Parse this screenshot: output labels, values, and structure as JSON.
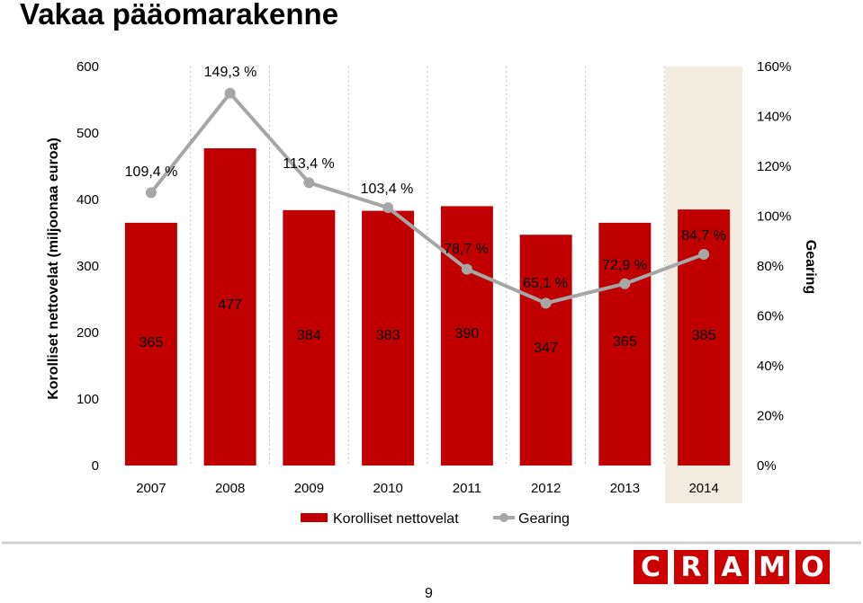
{
  "page": {
    "title": "Vakaa pääomarakenne",
    "page_number": "9",
    "logo_letters": [
      "C",
      "R",
      "A",
      "M",
      "O"
    ],
    "colors": {
      "bar": "#c00000",
      "line": "#a6a6a6",
      "highlight": "#f2ebdf",
      "logo": "#cc0000"
    }
  },
  "chart_data": {
    "type": "bar",
    "categories": [
      "2007",
      "2008",
      "2009",
      "2010",
      "2011",
      "2012",
      "2013",
      "2014"
    ],
    "series": [
      {
        "name": "Korolliset nettovelat",
        "type": "bar",
        "axis": "left",
        "values": [
          365,
          477,
          384,
          383,
          390,
          347,
          365,
          385
        ],
        "labels": [
          "365",
          "477",
          "384",
          "383",
          "390",
          "347",
          "365",
          "385"
        ]
      },
      {
        "name": "Gearing",
        "type": "line",
        "axis": "right",
        "values": [
          109.4,
          149.3,
          113.4,
          103.4,
          78.7,
          65.1,
          72.9,
          84.7
        ],
        "labels": [
          "109,4 %",
          "149,3 %",
          "113,4 %",
          "103,4 %",
          "78,7 %",
          "65,1 %",
          "72,9 %",
          "84,7 %"
        ]
      }
    ],
    "ylabel": "Korolliset nettovelat (miljoonaa euroa)",
    "y2label": "Gearing",
    "ylim": [
      0,
      600
    ],
    "y2lim": [
      0,
      160
    ],
    "yticks": [
      "0",
      "100",
      "200",
      "300",
      "400",
      "500",
      "600"
    ],
    "y2ticks": [
      "0%",
      "20%",
      "40%",
      "60%",
      "80%",
      "100%",
      "120%",
      "140%",
      "160%"
    ],
    "highlight_category": "2014",
    "grid": "vertical dashed",
    "legend_position": "bottom"
  }
}
